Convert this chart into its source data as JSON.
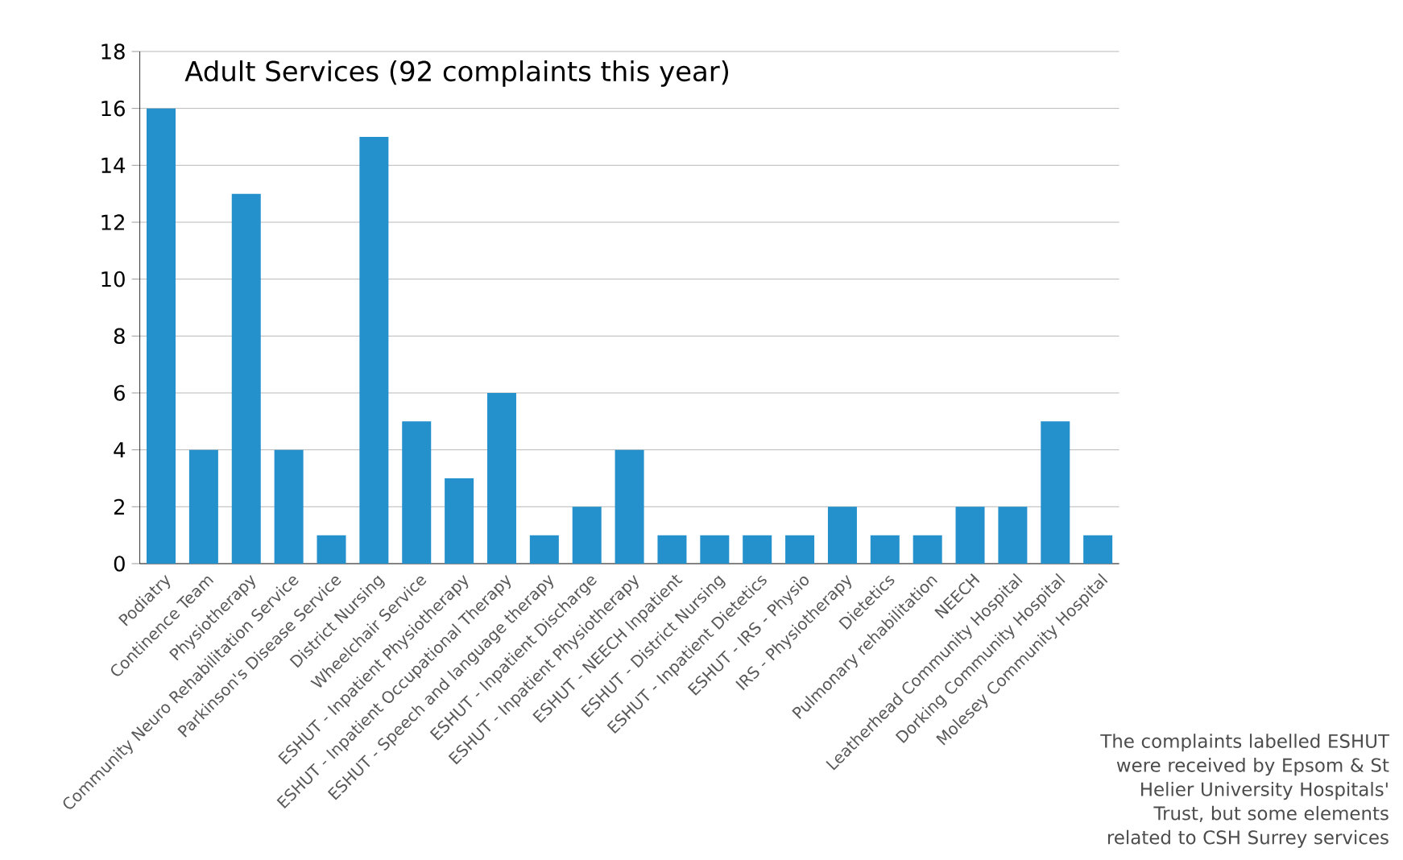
{
  "chart_data": {
    "type": "bar",
    "title": "Adult Services (92 complaints this year)",
    "categories": [
      "Podiatry",
      "Continence Team",
      "Physiotherapy",
      "Community Neuro Rehabilitation Service",
      "Parkinson's Disease Service",
      "District Nursing",
      "Wheelchair Service",
      "ESHUT - Inpatient Physiotherapy",
      "ESHUT - Inpatient Occupational Therapy",
      "ESHUT - Speech and language therapy",
      "ESHUT - Inpatient Discharge",
      "ESHUT - Inpatient Physiotherapy",
      "ESHUT - NEECH Inpatient",
      "ESHUT - District Nursing",
      "ESHUT - Inpatient Dietetics",
      "ESHUT - IRS - Physio",
      "IRS - Physiotherapy",
      "Dietetics",
      "Pulmonary rehabilitation",
      "NEECH",
      "Leatherhead Community Hospital",
      "Dorking Community Hospital",
      "Molesey Community Hospital"
    ],
    "values": [
      16,
      4,
      13,
      4,
      1,
      15,
      5,
      3,
      6,
      1,
      2,
      4,
      1,
      1,
      1,
      1,
      2,
      1,
      1,
      2,
      2,
      5,
      1
    ],
    "color": "#2490cc",
    "ylim": [
      0,
      18
    ],
    "yticks": [
      0,
      2,
      4,
      6,
      8,
      10,
      12,
      14,
      16,
      18
    ],
    "grid": "y",
    "annotations": [
      "The complaints labelled ESHUT were received by Epsom & St Helier University Hospitals' Trust, but some elements related to CSH Surrey services"
    ]
  }
}
